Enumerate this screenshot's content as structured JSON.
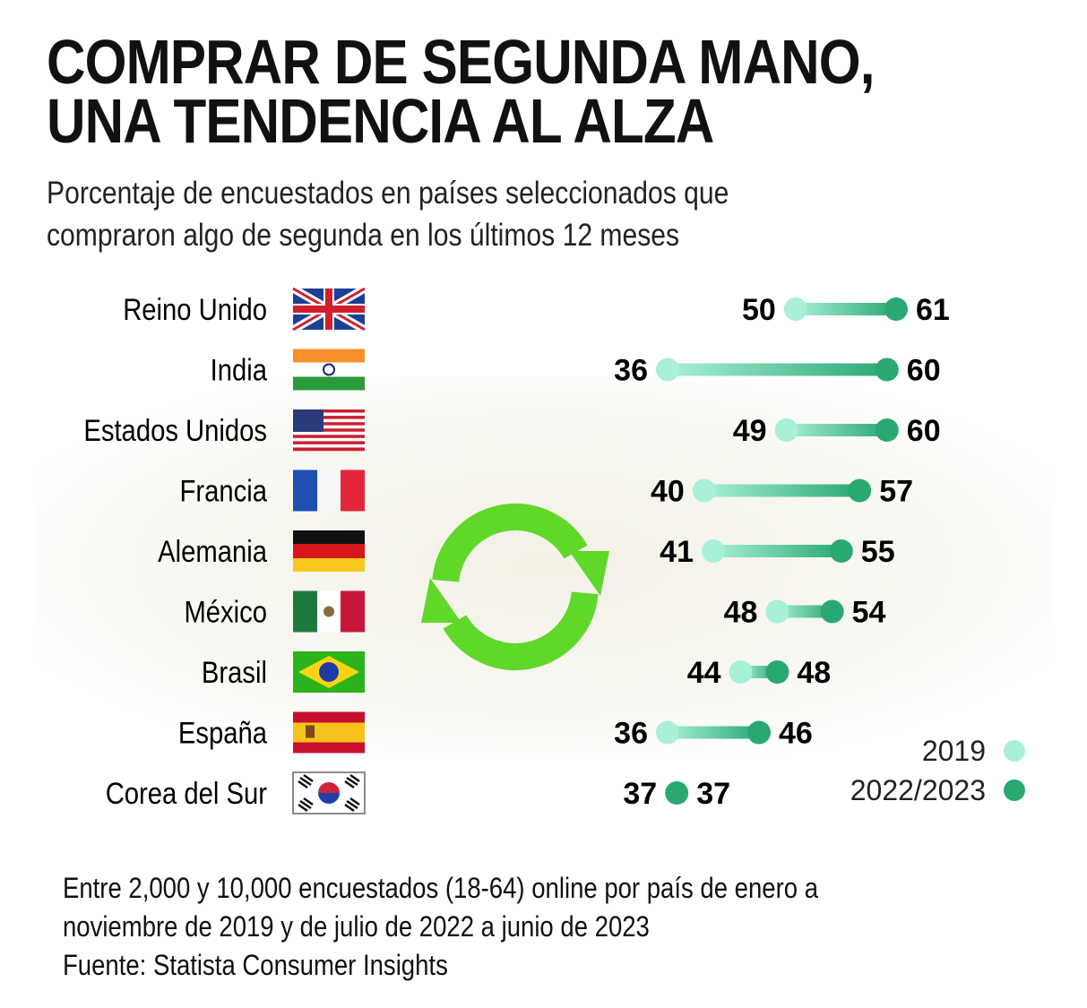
{
  "title_lines": [
    "COMPRAR DE SEGUNDA MANO,",
    "UNA TENDENCIA AL ALZA"
  ],
  "subtitle_lines": [
    "Porcentaje de encuestados en países seleccionados que",
    "compraron algo de segunda en los últimos 12 meses"
  ],
  "footer_lines": [
    "Entre 2,000 y 10,000 encuestados (18-64)  online por país de enero a",
    "noviembre de 2019 y de julio de 2022 a junio de 2023",
    "Fuente: Statista Consumer Insights"
  ],
  "decoration": {
    "icon": "recycle-arrows-icon",
    "color": "#5fd82a"
  },
  "chart_data": {
    "type": "dumbbell",
    "categories": [
      "Reino Unido",
      "India",
      "Estados Unidos",
      "Francia",
      "Alemania",
      "México",
      "Brasil",
      "España",
      "Corea del Sur"
    ],
    "flags": [
      "uk-flag",
      "india-flag",
      "usa-flag",
      "france-flag",
      "germany-flag",
      "mexico-flag",
      "brazil-flag",
      "spain-flag",
      "south-korea-flag"
    ],
    "series": [
      {
        "name": "2019",
        "color": "#a8f0d6",
        "values": [
          50,
          36,
          49,
          40,
          41,
          48,
          44,
          36,
          37
        ]
      },
      {
        "name": "2022/2023",
        "color": "#2aa872",
        "values": [
          61,
          60,
          60,
          57,
          55,
          54,
          48,
          46,
          37
        ]
      }
    ],
    "legend_position": "bottom-right",
    "grid": false
  }
}
